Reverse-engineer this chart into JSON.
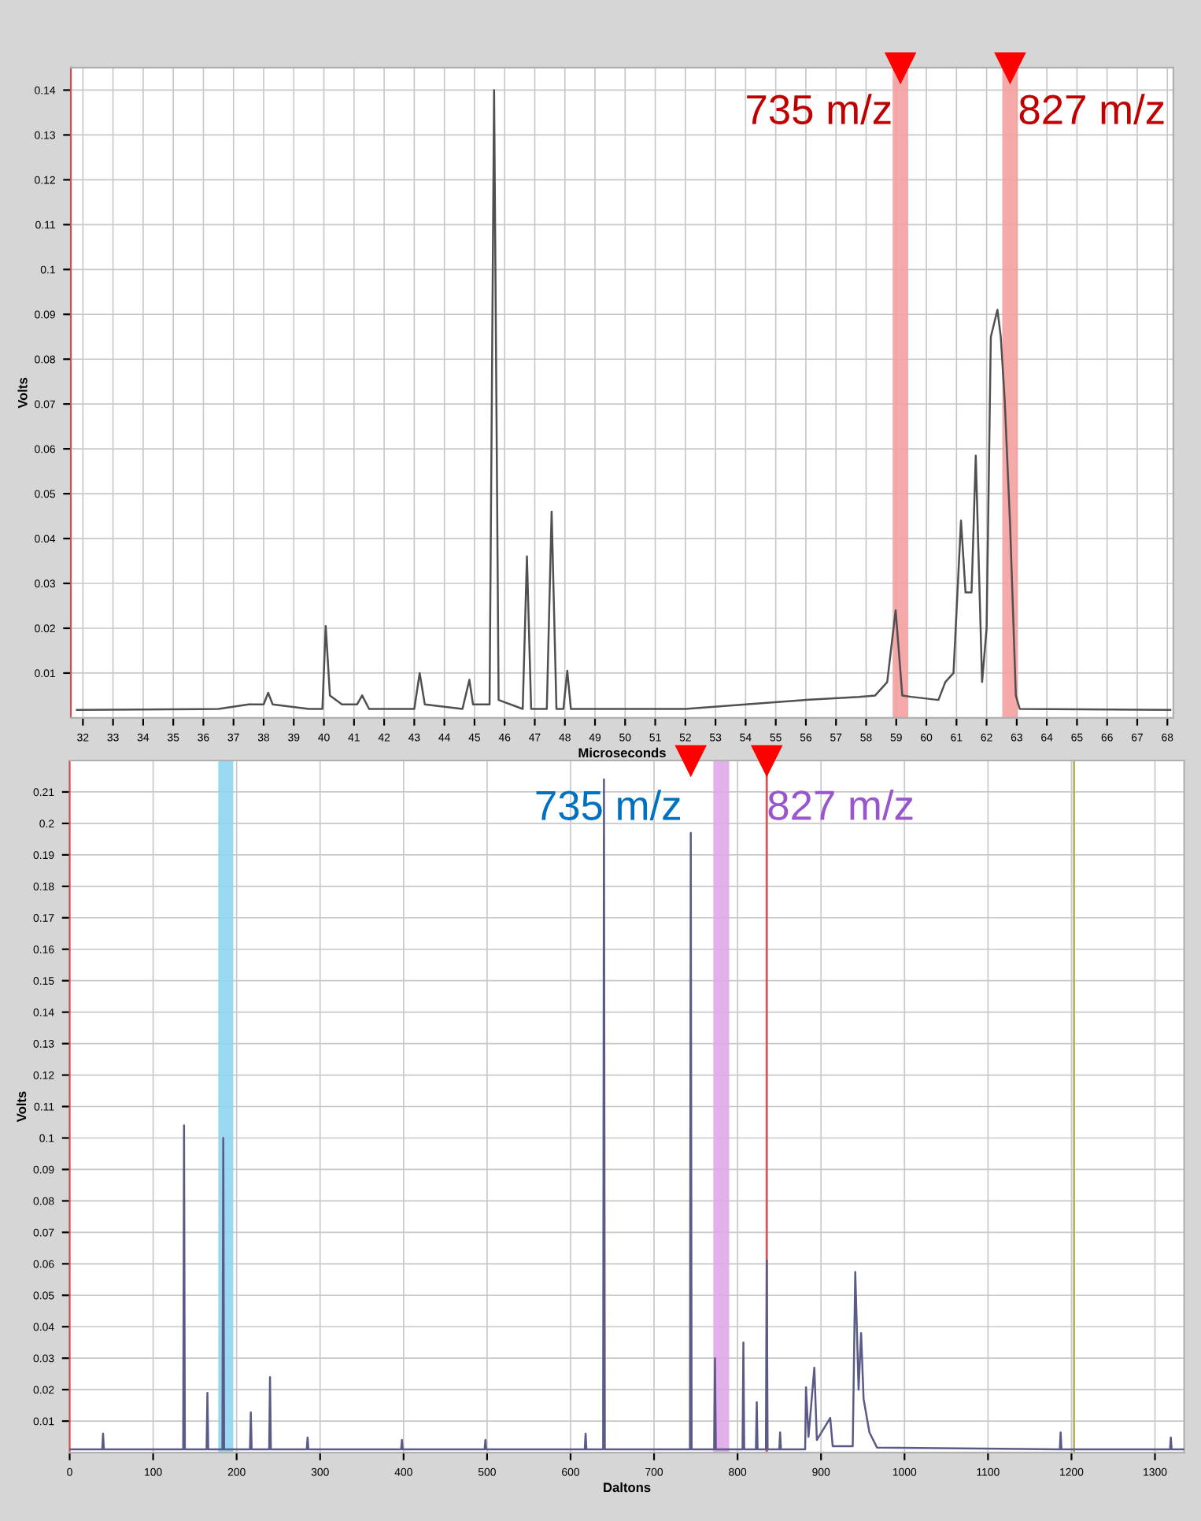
{
  "chart_data": [
    {
      "type": "line",
      "xlabel": "Microseconds",
      "ylabel": "Volts",
      "series": [
        {
          "color": "#505050",
          "x": [
            31.8,
            36.5,
            37.5,
            38.0,
            38.15,
            38.3,
            39.5,
            39.95,
            40.06,
            40.2,
            40.6,
            41.1,
            41.27,
            41.5,
            43.0,
            43.18,
            43.35,
            44.6,
            44.83,
            44.95,
            45.5,
            45.65,
            45.8,
            46.6,
            46.74,
            46.88,
            47.4,
            47.56,
            47.72,
            47.95,
            48.08,
            48.2,
            52,
            54,
            56,
            57.76,
            58.3,
            58.7,
            58.98,
            59.2,
            59.5,
            60.4,
            60.63,
            60.9,
            61.15,
            61.3,
            61.5,
            61.64,
            61.85,
            62.0,
            62.14,
            62.36,
            62.47,
            62.6,
            62.78,
            62.97,
            63.1,
            68.1
          ],
          "values": [
            0.0018,
            0.002,
            0.003,
            0.003,
            0.0056,
            0.003,
            0.002,
            0.002,
            0.0205,
            0.005,
            0.003,
            0.003,
            0.005,
            0.002,
            0.002,
            0.01,
            0.003,
            0.002,
            0.0085,
            0.003,
            0.003,
            0.14,
            0.004,
            0.002,
            0.036,
            0.002,
            0.002,
            0.046,
            0.002,
            0.002,
            0.0105,
            0.002,
            0.002,
            0.003,
            0.004,
            0.0047,
            0.005,
            0.008,
            0.024,
            0.005,
            0.0047,
            0.004,
            0.008,
            0.01,
            0.044,
            0.028,
            0.028,
            0.0585,
            0.008,
            0.02,
            0.085,
            0.091,
            0.085,
            0.071,
            0.043,
            0.005,
            0.002,
            0.0018
          ]
        }
      ],
      "xlim": [
        31.6,
        68.2
      ],
      "ylim": [
        0,
        0.145
      ],
      "xticks": [
        32,
        33,
        34,
        35,
        36,
        37,
        38,
        39,
        40,
        41,
        42,
        43,
        44,
        45,
        46,
        47,
        48,
        49,
        50,
        51,
        52,
        53,
        54,
        55,
        56,
        57,
        58,
        59,
        60,
        61,
        62,
        63,
        64,
        65,
        66,
        67,
        68
      ],
      "yticks": [
        0.01,
        0.02,
        0.03,
        0.04,
        0.05,
        0.06,
        0.07,
        0.08,
        0.09,
        0.1,
        0.11,
        0.12,
        0.13,
        0.14
      ],
      "grid": true,
      "bands": [
        {
          "axis": "x",
          "from": 58.88,
          "to": 59.4,
          "color": "#f4a0a0",
          "label": "735 m/z"
        },
        {
          "axis": "x",
          "from": 62.52,
          "to": 63.04,
          "color": "#f4a0a0",
          "label": "827 m/z"
        }
      ]
    },
    {
      "type": "line",
      "xlabel": "Daltons",
      "ylabel": "Volts",
      "series": [
        {
          "color": "#5a5a88",
          "x": [
            0,
            39,
            40,
            41,
            136,
            137,
            138,
            164,
            165,
            166,
            183,
            184,
            185,
            216,
            217,
            218,
            239,
            240,
            241,
            284,
            285,
            286,
            397,
            398,
            399,
            497,
            498,
            499,
            617,
            618,
            619,
            639,
            640,
            641,
            743,
            744,
            745,
            772,
            773,
            774,
            806,
            807,
            808,
            822,
            823,
            824,
            834,
            835,
            836,
            850,
            851,
            852,
            881,
            882,
            885,
            892,
            895,
            911,
            914,
            938,
            941,
            945,
            948,
            951,
            958,
            967,
            1186,
            1187,
            1188,
            1318,
            1319,
            1320,
            1335
          ],
          "values": [
            0.001,
            0.001,
            0.006,
            0.001,
            0.001,
            0.104,
            0.001,
            0.001,
            0.019,
            0.001,
            0.001,
            0.1,
            0.001,
            0.001,
            0.0128,
            0.001,
            0.001,
            0.024,
            0.001,
            0.001,
            0.0048,
            0.001,
            0.001,
            0.004,
            0.001,
            0.001,
            0.004,
            0.001,
            0.001,
            0.006,
            0.001,
            0.001,
            0.214,
            0.001,
            0.001,
            0.197,
            0.001,
            0.001,
            0.03,
            0.001,
            0.001,
            0.035,
            0.001,
            0.001,
            0.016,
            0.001,
            0.001,
            0.061,
            0.001,
            0.001,
            0.0064,
            0.001,
            0.001,
            0.0207,
            0.005,
            0.027,
            0.004,
            0.011,
            0.002,
            0.002,
            0.0574,
            0.02,
            0.038,
            0.017,
            0.0064,
            0.0016,
            0.001,
            0.0064,
            0.001,
            0.001,
            0.0048,
            0.001,
            0.001
          ]
        }
      ],
      "xlim": [
        0,
        1335
      ],
      "ylim": [
        0,
        0.22
      ],
      "xticks": [
        0,
        100,
        200,
        300,
        400,
        500,
        600,
        700,
        800,
        900,
        1000,
        1100,
        1200,
        1300
      ],
      "yticks": [
        0.01,
        0.02,
        0.03,
        0.04,
        0.05,
        0.06,
        0.07,
        0.08,
        0.09,
        0.1,
        0.11,
        0.12,
        0.13,
        0.14,
        0.15,
        0.16,
        0.17,
        0.18,
        0.19,
        0.2,
        0.21
      ],
      "grid": true,
      "bands": [
        {
          "axis": "x",
          "from": 178,
          "to": 196,
          "color": "#8fd3f0"
        },
        {
          "axis": "x",
          "from": 771,
          "to": 790,
          "color": "#e0a8e8"
        }
      ],
      "ref_lines": [
        {
          "axis": "x",
          "value": 835,
          "color": "#e05050",
          "label": "827 m/z"
        },
        {
          "axis": "x",
          "value": 1203,
          "color": "#b5b56a"
        }
      ],
      "annotations": [
        {
          "text": "735 m/z",
          "x": 744,
          "y": 0.197
        }
      ]
    }
  ]
}
